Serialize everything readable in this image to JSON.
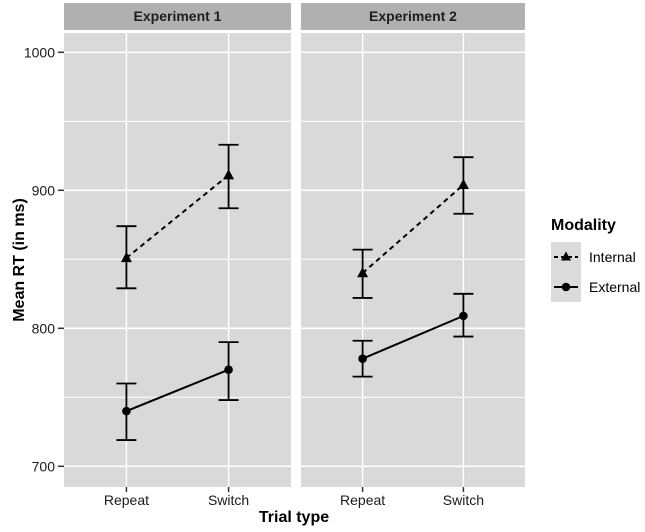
{
  "colors": {
    "background": "#ffffff",
    "panel_bg": "#d9d9d9",
    "strip_bg": "#b0b0b0",
    "grid": "#ffffff",
    "series": "#000000",
    "text": "#1a1a1a",
    "tick": "#333333",
    "legend_key_bg": "#dbdbdb"
  },
  "chart_data": {
    "type": "line",
    "title": "",
    "xlabel": "Trial type",
    "ylabel": "Mean RT (in ms)",
    "categories": [
      "Repeat",
      "Switch"
    ],
    "ylim": [
      685,
      1014
    ],
    "y_ticks": [
      700,
      800,
      900,
      1000
    ],
    "y_minor_ticks": [
      750,
      850,
      950
    ],
    "grid": "on",
    "error_bars": true,
    "facets": [
      {
        "label": "Experiment 1",
        "series": [
          {
            "name": "Internal",
            "marker": "triangle",
            "line_style": "dashed",
            "points": [
              {
                "x": "Repeat",
                "y": 851,
                "ci_low": 829,
                "ci_high": 874
              },
              {
                "x": "Switch",
                "y": 911,
                "ci_low": 887,
                "ci_high": 933
              }
            ]
          },
          {
            "name": "External",
            "marker": "circle",
            "line_style": "solid",
            "points": [
              {
                "x": "Repeat",
                "y": 740,
                "ci_low": 719,
                "ci_high": 760
              },
              {
                "x": "Switch",
                "y": 770,
                "ci_low": 748,
                "ci_high": 790
              }
            ]
          }
        ]
      },
      {
        "label": "Experiment 2",
        "series": [
          {
            "name": "Internal",
            "marker": "triangle",
            "line_style": "dashed",
            "points": [
              {
                "x": "Repeat",
                "y": 840,
                "ci_low": 822,
                "ci_high": 857
              },
              {
                "x": "Switch",
                "y": 904,
                "ci_low": 883,
                "ci_high": 924
              }
            ]
          },
          {
            "name": "External",
            "marker": "circle",
            "line_style": "solid",
            "points": [
              {
                "x": "Repeat",
                "y": 778,
                "ci_low": 765,
                "ci_high": 791
              },
              {
                "x": "Switch",
                "y": 809,
                "ci_low": 794,
                "ci_high": 825
              }
            ]
          }
        ]
      }
    ],
    "legend": {
      "title": "Modality",
      "position": "right",
      "entries": [
        {
          "label": "Internal",
          "marker": "triangle",
          "line_style": "dashed"
        },
        {
          "label": "External",
          "marker": "circle",
          "line_style": "solid"
        }
      ]
    }
  }
}
